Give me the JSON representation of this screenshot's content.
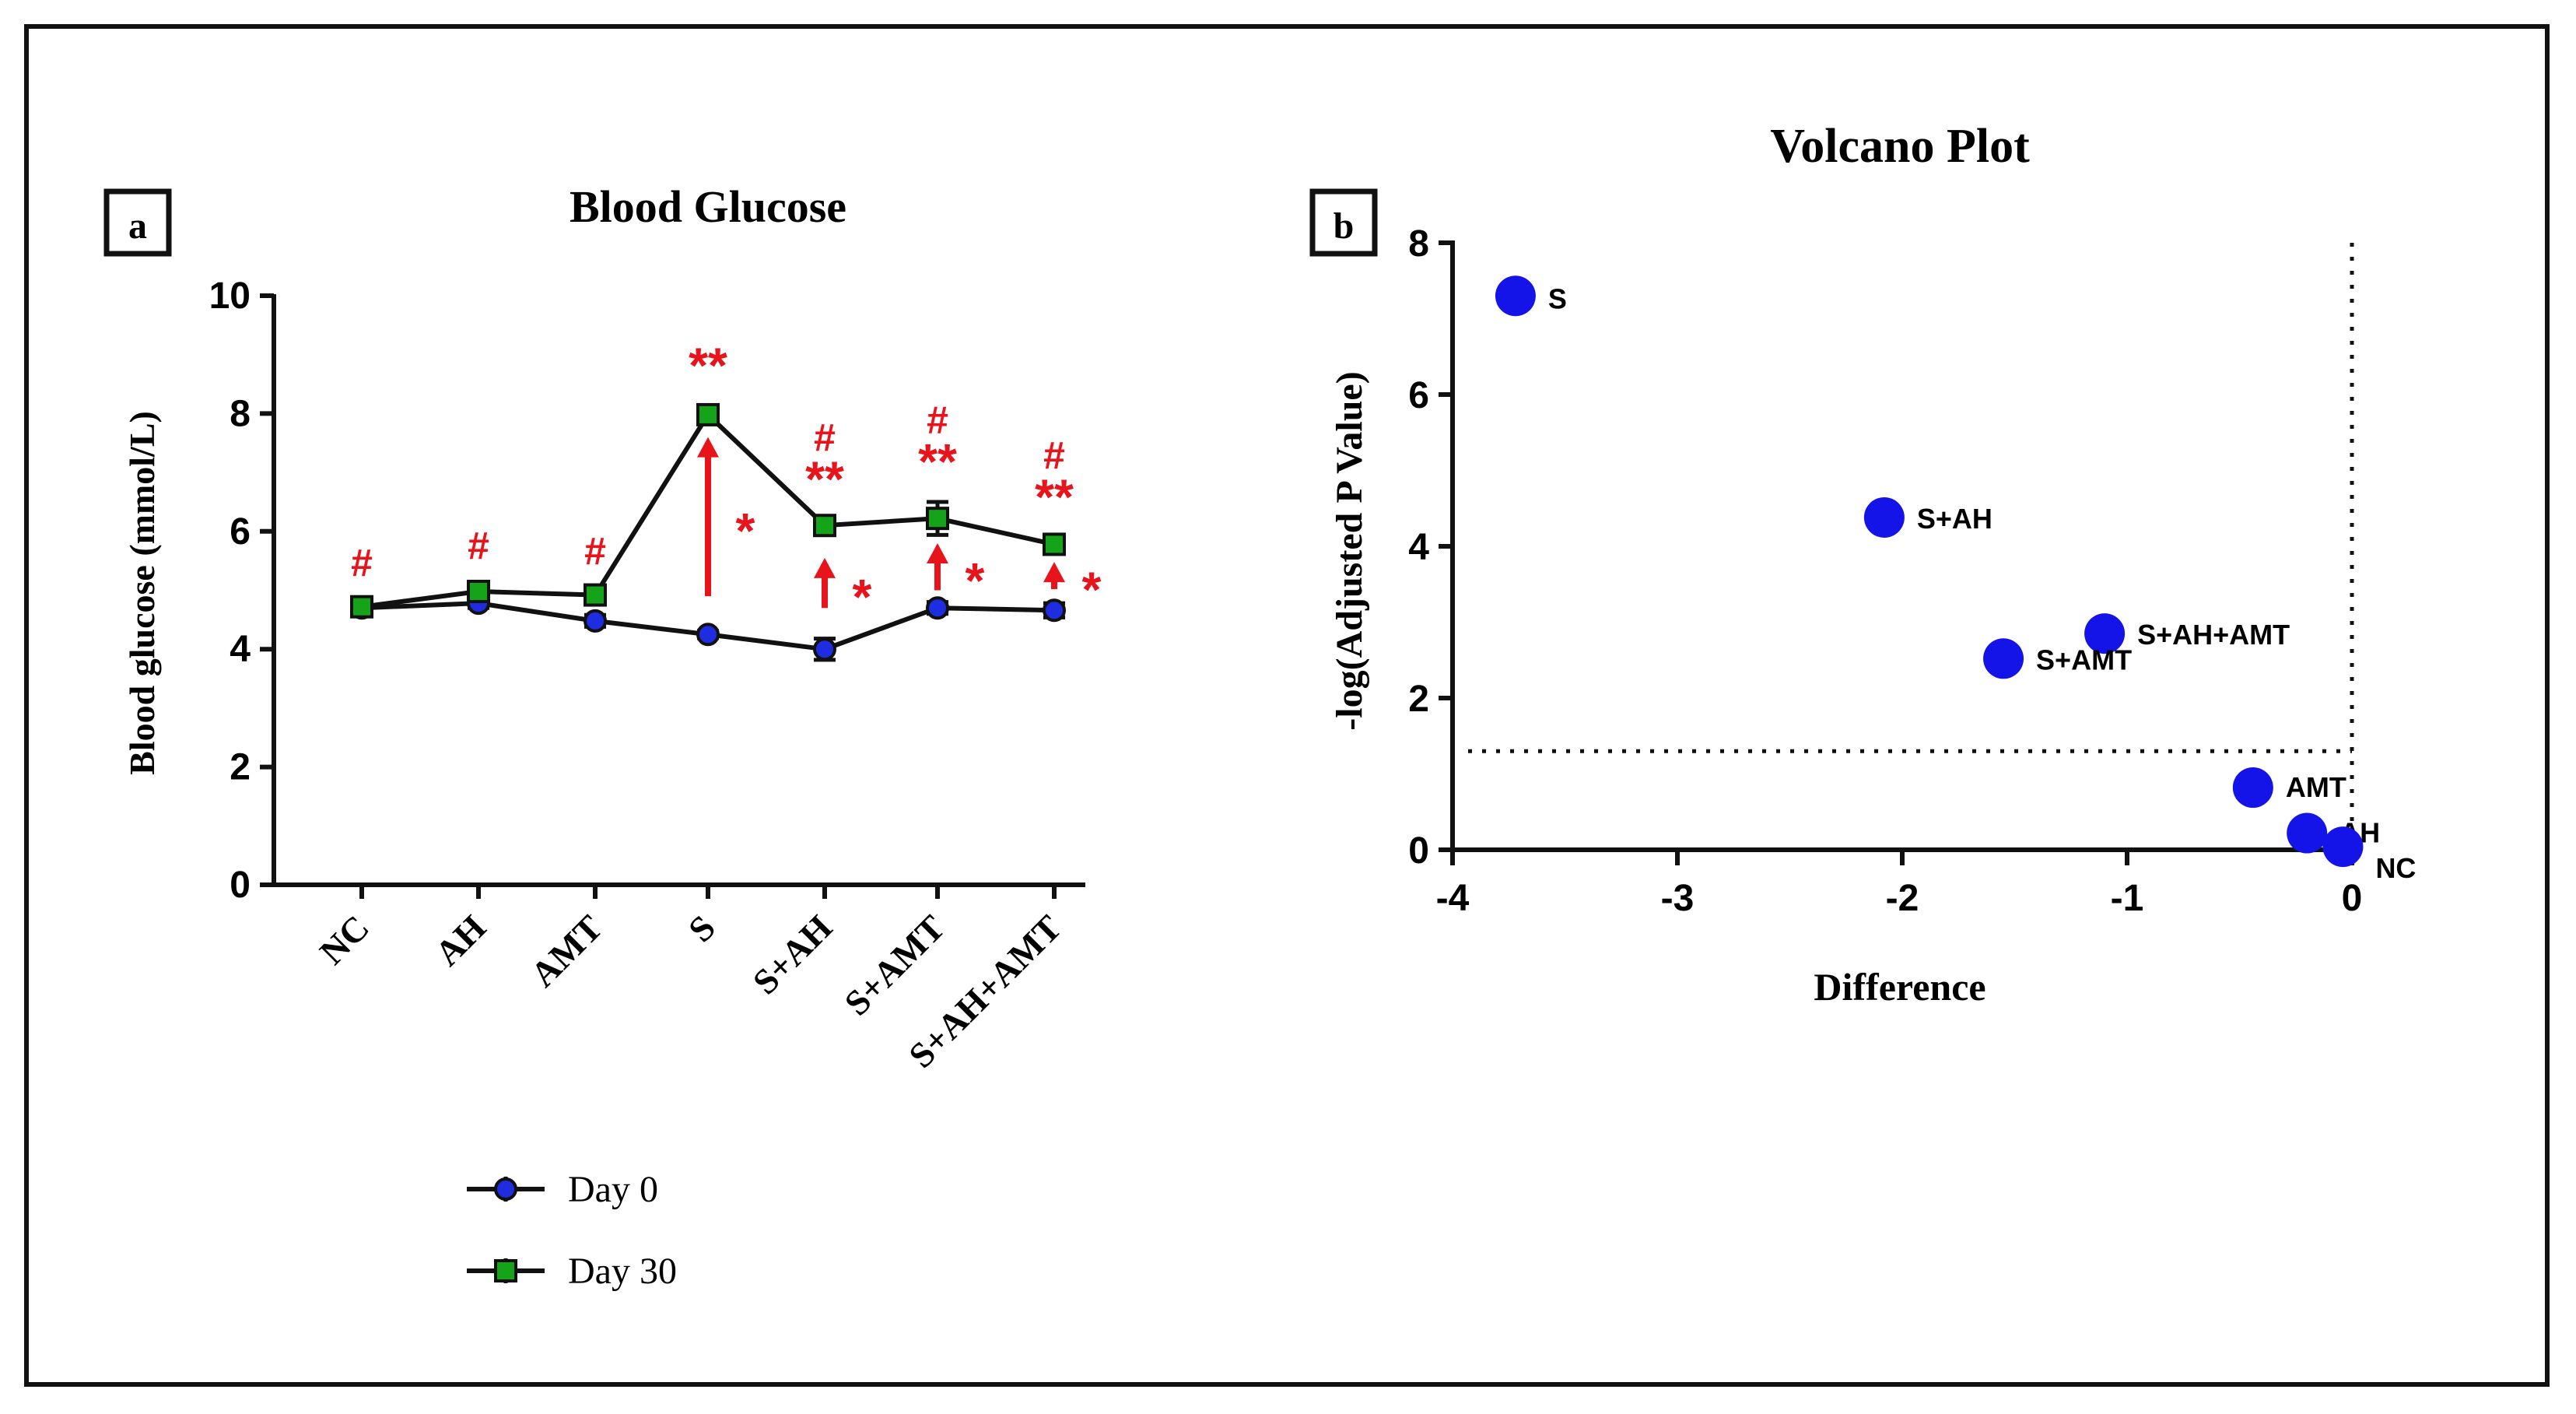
{
  "chart_data": [
    {
      "panel": "a",
      "type": "line",
      "title": "Blood Glucose",
      "xlabel": "",
      "ylabel": "Blood glucose (mmol/L)",
      "ylim": [
        0,
        10
      ],
      "yticks": [
        "0",
        "2",
        "4",
        "6",
        "8",
        "10"
      ],
      "grid": false,
      "categories": [
        "NC",
        "AH",
        "AMT",
        "S",
        "S+AH",
        "S+AMT",
        "S+AH+AMT"
      ],
      "series": [
        {
          "name": "Day 0",
          "color": "#1f2de0",
          "marker": "circle",
          "values": [
            4.7,
            4.78,
            4.48,
            4.25,
            4.0,
            4.7,
            4.66
          ],
          "errors": [
            0.12,
            0.08,
            0.1,
            0.06,
            0.18,
            0.1,
            0.12
          ]
        },
        {
          "name": "Day 30",
          "color": "#15a31a",
          "marker": "square",
          "values": [
            4.72,
            4.98,
            4.92,
            7.98,
            6.1,
            6.22,
            5.78
          ],
          "errors": [
            0.12,
            0.15,
            0.12,
            0.15,
            0.1,
            0.28,
            0.12
          ]
        }
      ],
      "annotations": {
        "color": "#e8141c",
        "top": [
          [
            "#"
          ],
          [
            "#"
          ],
          [
            "#"
          ],
          [
            "**"
          ],
          [
            "#",
            "**"
          ],
          [
            "#",
            "**"
          ],
          [
            "#",
            "**"
          ]
        ],
        "change_marks": [
          "",
          "",
          "",
          "*",
          "*",
          "*",
          "*"
        ]
      },
      "legend": {
        "placement": "bottom",
        "entries": [
          "Day 0",
          "Day 30"
        ]
      }
    },
    {
      "panel": "b",
      "type": "scatter",
      "title": "Volcano Plot",
      "xlabel": "Difference",
      "ylabel": "-log(Adjusted P Value)",
      "xlim": [
        -4,
        0
      ],
      "ylim": [
        0,
        8
      ],
      "xticks": [
        "-4",
        "-3",
        "-2",
        "-1",
        "0"
      ],
      "yticks": [
        "0",
        "2",
        "4",
        "6",
        "8"
      ],
      "grid": false,
      "threshold_y": 1.3,
      "threshold_x": 0,
      "point_color": "#1414e8",
      "points": [
        {
          "label": "S",
          "x": -3.72,
          "y": 7.3
        },
        {
          "label": "S+AH",
          "x": -2.08,
          "y": 4.38
        },
        {
          "label": "S+AH+AMT",
          "x": -1.1,
          "y": 2.85
        },
        {
          "label": "S+AMT",
          "x": -1.55,
          "y": 2.52
        },
        {
          "label": "AMT",
          "x": -0.44,
          "y": 0.82
        },
        {
          "label": "AH",
          "x": -0.2,
          "y": 0.22
        },
        {
          "label": "NC",
          "x": -0.04,
          "y": 0.04
        }
      ]
    }
  ]
}
